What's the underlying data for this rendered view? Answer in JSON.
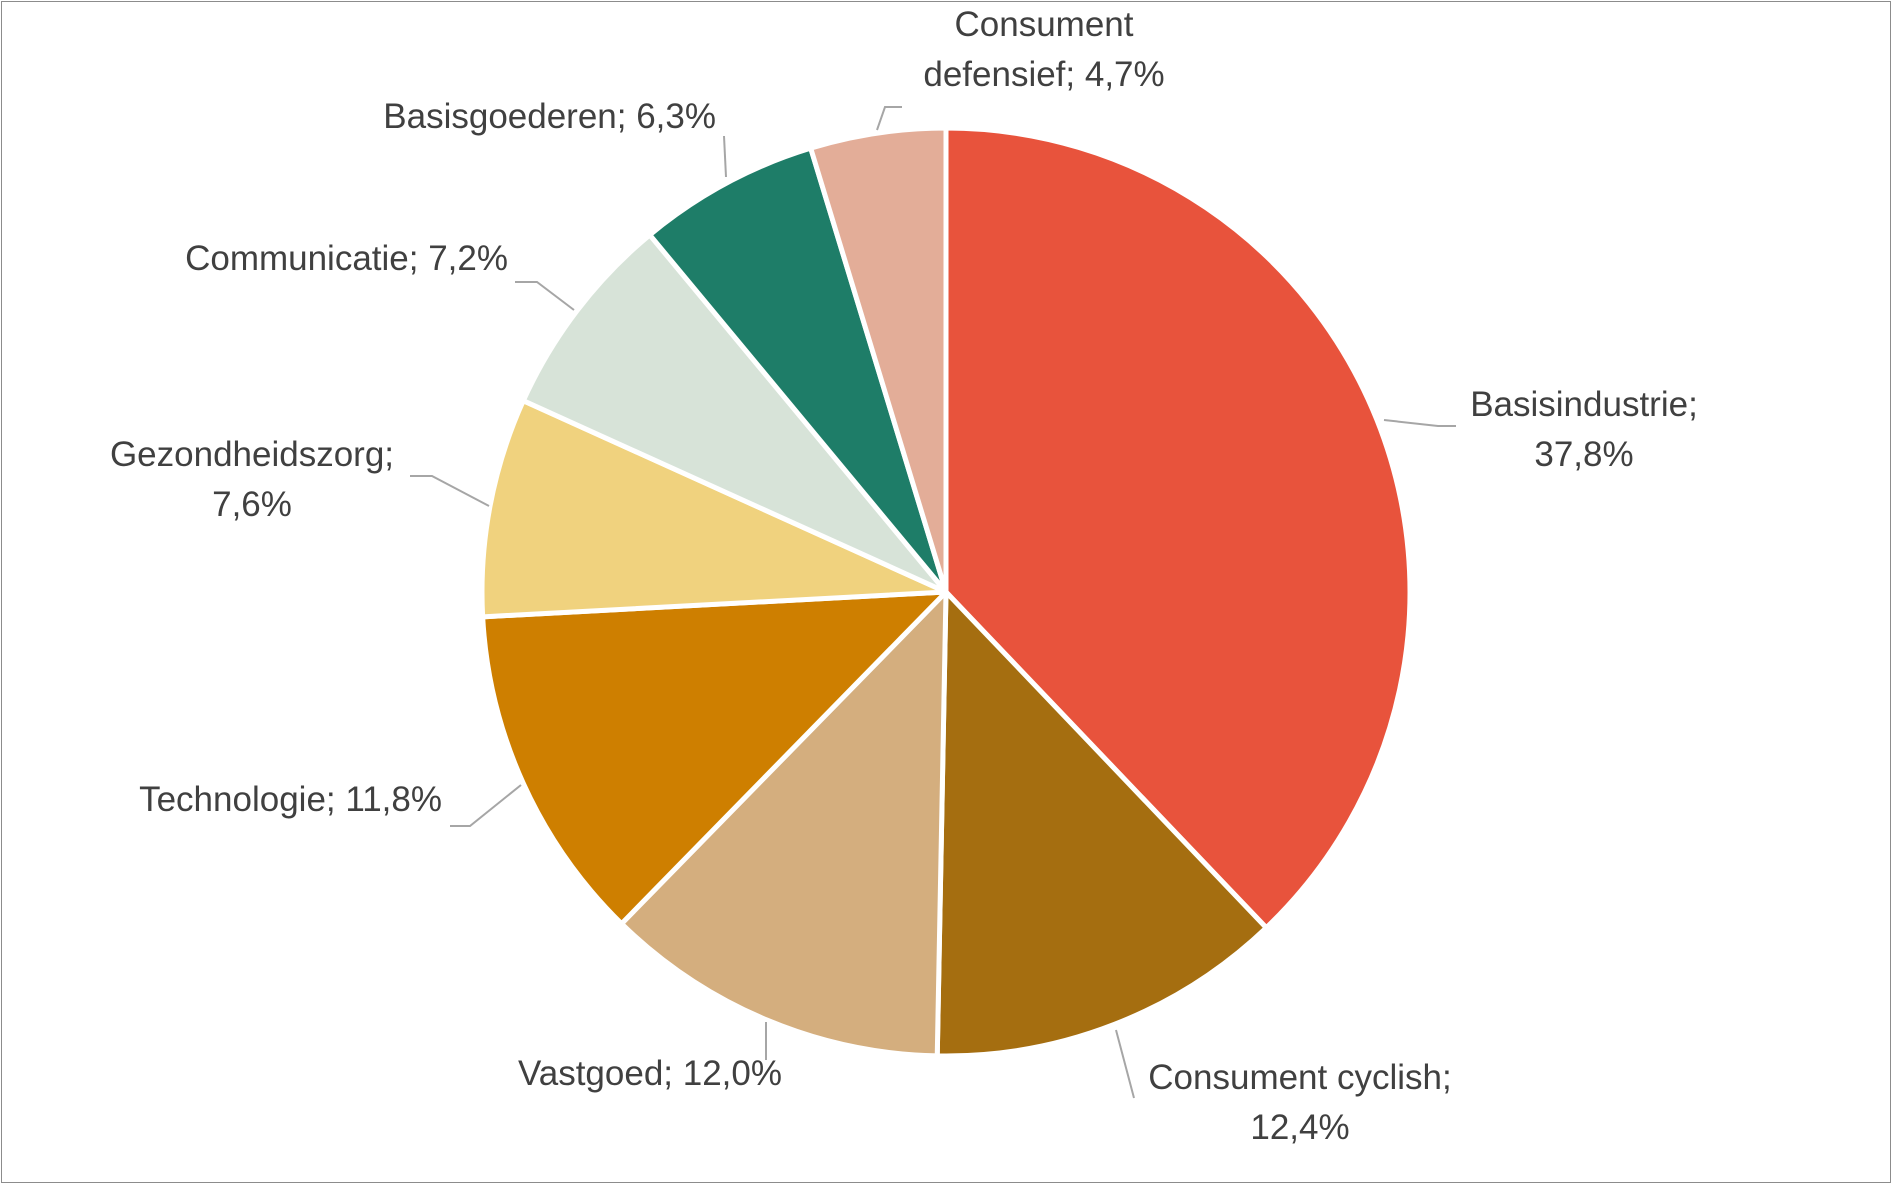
{
  "chart_data": {
    "type": "pie",
    "title": "",
    "start_angle_deg": 0,
    "direction": "clockwise",
    "slices": [
      {
        "category": "Basisindustrie",
        "value": 37.8,
        "label_lines": [
          "Basisindustrie;",
          "37,8%"
        ],
        "color": "#E8533C"
      },
      {
        "category": "Consument cyclish",
        "value": 12.4,
        "label_lines": [
          "Consument cyclish;",
          "12,4%"
        ],
        "color": "#A56E10"
      },
      {
        "category": "Vastgoed",
        "value": 12.0,
        "label_lines": [
          "Vastgoed; 12,0%"
        ],
        "color": "#D4AE7E"
      },
      {
        "category": "Technologie",
        "value": 11.8,
        "label_lines": [
          "Technologie; 11,8%"
        ],
        "color": "#CE7F00"
      },
      {
        "category": "Gezondheidszorg",
        "value": 7.6,
        "label_lines": [
          "Gezondheidszorg;",
          "7,6%"
        ],
        "color": "#F0D27E"
      },
      {
        "category": "Communicatie",
        "value": 7.2,
        "label_lines": [
          "Communicatie; 7,2%"
        ],
        "color": "#D7E3D8"
      },
      {
        "category": "Basisgoederen",
        "value": 6.3,
        "label_lines": [
          "Basisgoederen; 6,3%"
        ],
        "color": "#1E7D68"
      },
      {
        "category": "Consument defensief",
        "value": 4.7,
        "label_lines": [
          "Consument",
          "defensief; 4,7%"
        ],
        "color": "#E3AD98"
      }
    ]
  }
}
